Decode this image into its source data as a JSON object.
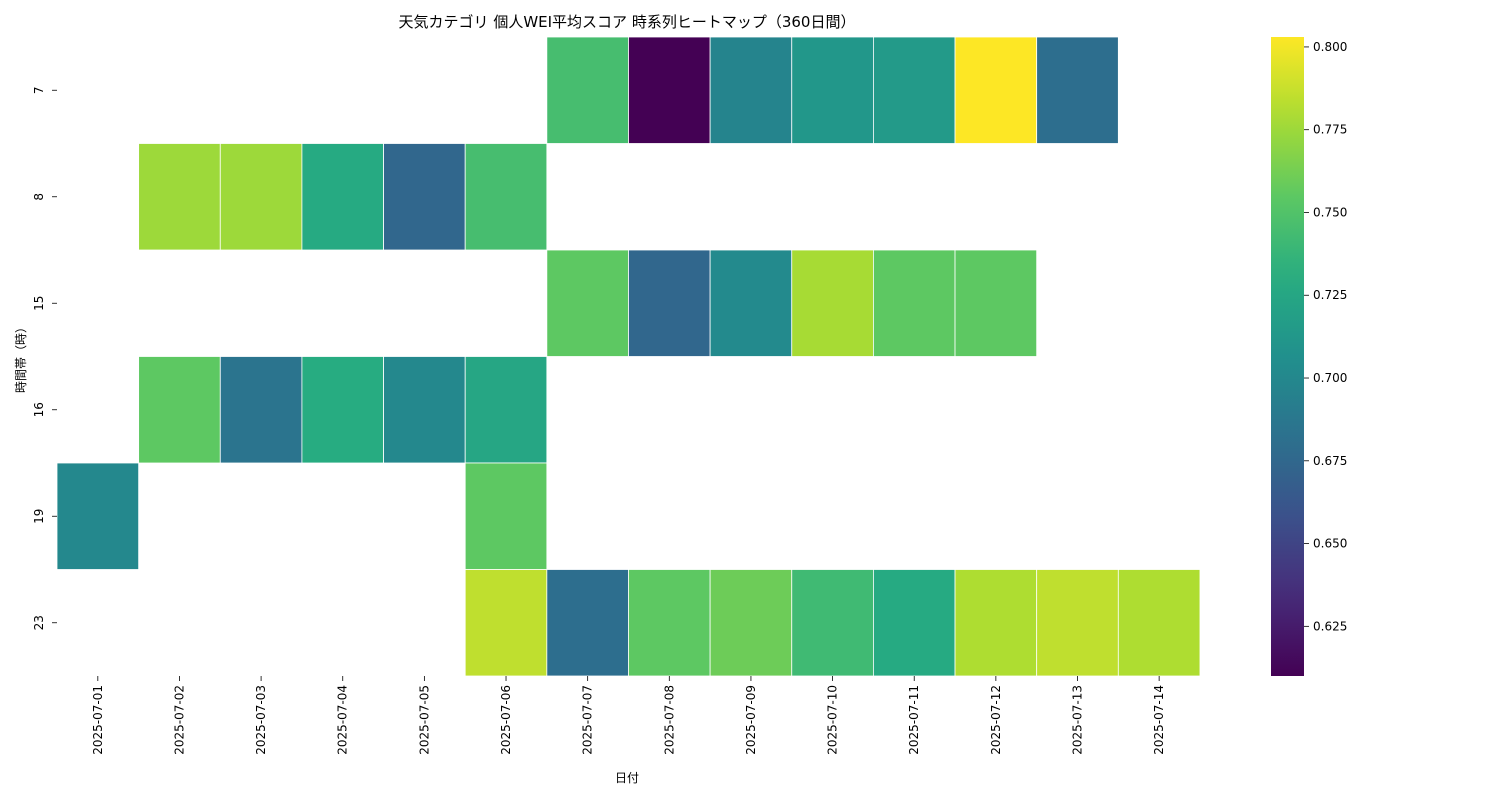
{
  "chart_data": {
    "type": "heatmap",
    "title": "天気カテゴリ 個人WEI平均スコア 時系列ヒートマップ（360日間）",
    "xlabel": "日付",
    "ylabel": "時間帯（時）",
    "x_categories": [
      "2025-07-01",
      "2025-07-02",
      "2025-07-03",
      "2025-07-04",
      "2025-07-05",
      "2025-07-06",
      "2025-07-07",
      "2025-07-08",
      "2025-07-09",
      "2025-07-10",
      "2025-07-11",
      "2025-07-12",
      "2025-07-13",
      "2025-07-14"
    ],
    "y_categories": [
      "7",
      "8",
      "15",
      "16",
      "19",
      "23"
    ],
    "values": [
      [
        null,
        null,
        null,
        null,
        null,
        null,
        0.745,
        0.61,
        0.697,
        0.712,
        0.715,
        0.803,
        0.68,
        null
      ],
      [
        null,
        0.775,
        0.775,
        0.728,
        0.675,
        0.745,
        null,
        null,
        null,
        null,
        null,
        null,
        null,
        null
      ],
      [
        null,
        null,
        null,
        null,
        null,
        null,
        0.755,
        0.675,
        0.702,
        0.778,
        0.755,
        0.755,
        null,
        null
      ],
      [
        null,
        0.755,
        0.685,
        0.73,
        0.7,
        0.725,
        null,
        null,
        null,
        null,
        null,
        null,
        null,
        null
      ],
      [
        0.7,
        null,
        null,
        null,
        null,
        0.755,
        null,
        null,
        null,
        null,
        null,
        null,
        null,
        null
      ],
      [
        null,
        null,
        null,
        null,
        null,
        0.785,
        0.68,
        0.755,
        0.76,
        0.742,
        0.728,
        0.78,
        0.785,
        0.78
      ]
    ],
    "colorbar": {
      "colormap": "viridis",
      "vmin": 0.61,
      "vmax": 0.803,
      "ticks": [
        "0.625",
        "0.650",
        "0.675",
        "0.700",
        "0.725",
        "0.750",
        "0.775",
        "0.800"
      ]
    }
  }
}
